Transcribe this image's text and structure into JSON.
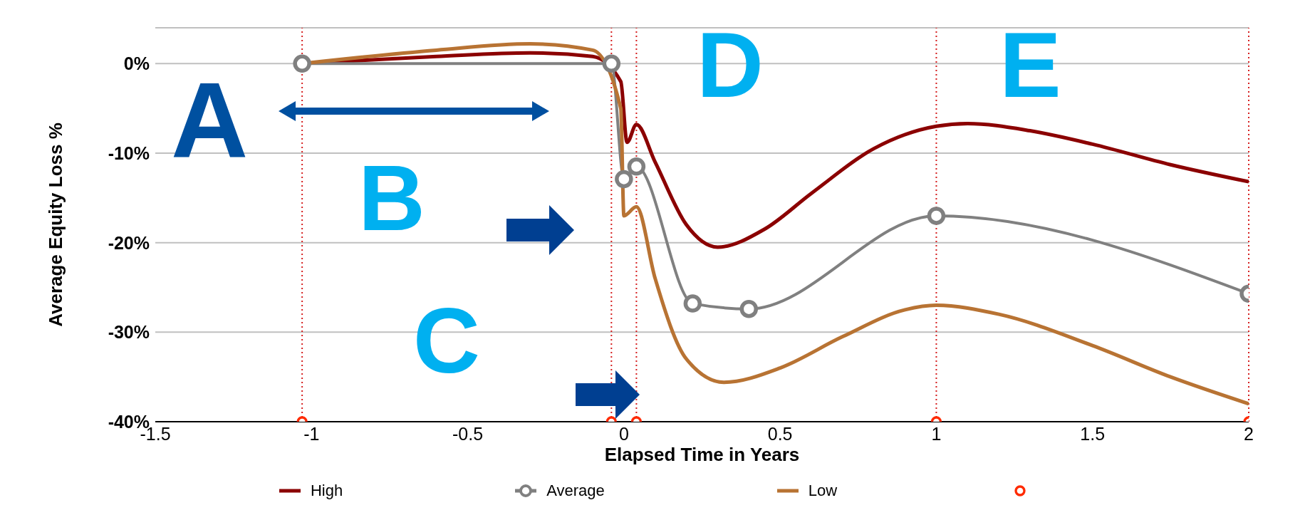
{
  "chart_data": {
    "type": "line",
    "xlabel": "Elapsed Time in Years",
    "ylabel": "Average Equity Loss %",
    "xlim": [
      -1.5,
      2
    ],
    "xticks": [
      -1.5,
      -1,
      -0.5,
      0,
      0.5,
      1,
      1.5,
      2
    ],
    "ylim": [
      -40,
      4
    ],
    "yticks": [
      {
        "value": -40,
        "label": "-40%"
      },
      {
        "value": -30,
        "label": "-30%"
      },
      {
        "value": -20,
        "label": "-20%"
      },
      {
        "value": -10,
        "label": "-10%"
      },
      {
        "value": 0,
        "label": "0%"
      }
    ],
    "grid": "y",
    "legend": "bottom",
    "line_style": "solid",
    "series": [
      {
        "name": "High",
        "color": "#8b0000",
        "marker": "none",
        "x": [
          -1.03,
          -0.6,
          -0.3,
          -0.1,
          -0.01,
          0.01,
          0.04,
          0.1,
          0.2,
          0.3,
          0.45,
          0.6,
          0.8,
          1,
          1.1,
          1.3,
          1.5,
          1.75,
          2
        ],
        "values": [
          0,
          0.8,
          1.2,
          0.8,
          -2,
          -8.8,
          -6.8,
          -11,
          -18,
          -20.5,
          -18.5,
          -14.5,
          -9.5,
          -7,
          -6.7,
          -7.5,
          -9,
          -11.3,
          -13.2
        ]
      },
      {
        "name": "Average",
        "color": "#808080",
        "marker": "circle",
        "x": [
          -1.03,
          -0.04,
          0.0,
          0.04,
          0.22,
          0.4,
          1,
          2
        ],
        "values": [
          0,
          0,
          -12.9,
          -11.5,
          -26.8,
          -27.4,
          -17,
          -25.7
        ]
      },
      {
        "name": "Low",
        "color": "#b87333",
        "marker": "none",
        "x": [
          -1.03,
          -0.6,
          -0.3,
          -0.1,
          -0.01,
          0.0,
          0.04,
          0.1,
          0.2,
          0.32,
          0.5,
          0.7,
          0.9,
          1,
          1.2,
          1.5,
          1.75,
          2
        ],
        "values": [
          0,
          1.5,
          2.2,
          1.5,
          -5,
          -17,
          -16,
          -24,
          -33,
          -35.6,
          -34,
          -30.5,
          -27.5,
          -27,
          -28,
          -31.5,
          -35,
          -38
        ]
      },
      {
        "type": "scatter",
        "color": "#ff2a00",
        "marker": "circle",
        "x": [
          -1.03,
          -0.04,
          0.04,
          1,
          2
        ],
        "values": [
          -40,
          -40,
          -40,
          -40,
          -40
        ]
      }
    ],
    "ref_lines": [
      {
        "axis": "x",
        "value": -1.03,
        "color": "#d62020",
        "line_style": "dotted"
      },
      {
        "axis": "x",
        "value": -0.04,
        "color": "#d62020",
        "line_style": "dotted"
      },
      {
        "axis": "x",
        "value": 0.04,
        "color": "#d62020",
        "line_style": "dotted"
      },
      {
        "axis": "x",
        "value": 1,
        "color": "#d62020",
        "line_style": "dotted"
      },
      {
        "axis": "x",
        "value": 2,
        "color": "#d62020",
        "line_style": "dotted"
      }
    ],
    "annotations": [
      "A",
      "B",
      "C",
      "D",
      "E"
    ]
  }
}
